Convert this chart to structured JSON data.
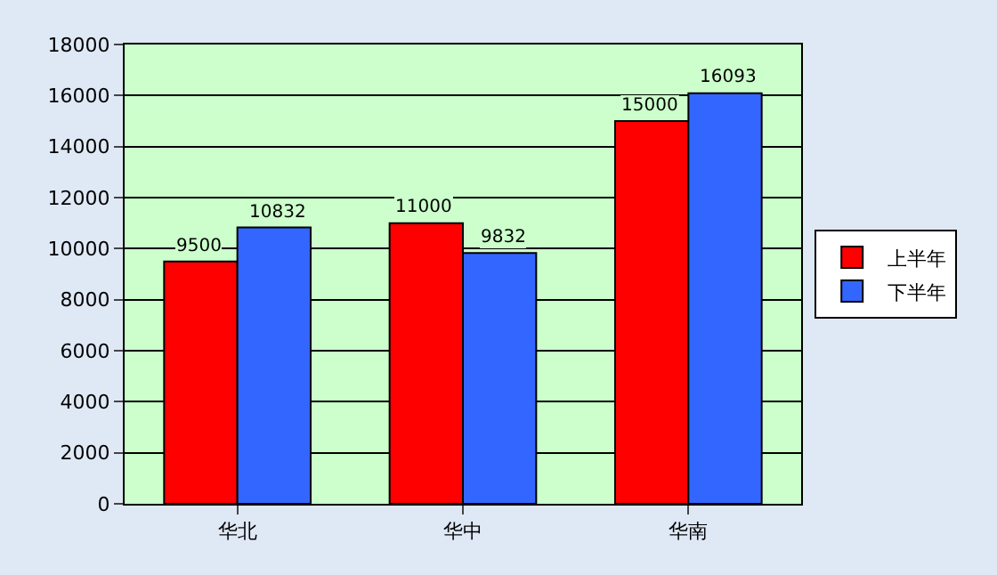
{
  "chart_data": {
    "type": "bar",
    "categories": [
      "华北",
      "华中",
      "华南"
    ],
    "series": [
      {
        "name": "上半年",
        "color": "#ff0000",
        "values": [
          9500,
          11000,
          15000
        ]
      },
      {
        "name": "下半年",
        "color": "#3366ff",
        "values": [
          10832,
          9832,
          16093
        ]
      }
    ],
    "ylim": [
      0,
      18000
    ],
    "yticks": [
      0,
      2000,
      4000,
      6000,
      8000,
      10000,
      12000,
      14000,
      16000,
      18000
    ],
    "grid": "y",
    "legend": "right",
    "data_labels": true
  }
}
